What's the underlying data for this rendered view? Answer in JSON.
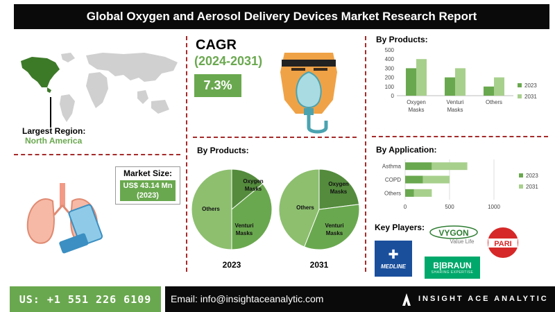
{
  "title": "Global Oxygen and Aerosol Delivery Devices Market Research Report",
  "region": {
    "label": "Largest Region:",
    "value": "North America"
  },
  "cagr": {
    "label": "CAGR",
    "period": "(2024-2031)",
    "value": "7.3%"
  },
  "market_size": {
    "label": "Market Size:",
    "value_line1": "US$ 43.14 Mn",
    "value_line2": "(2023)"
  },
  "products_heading": "By Products:",
  "application_heading": "By Application:",
  "pie_heading": "By Products:",
  "key_players_heading": "Key Players:",
  "logos": {
    "vygon": "VYGON",
    "vygon_tag": "Value Life",
    "pari": "PARI",
    "medline": "MEDLINE",
    "bbraun": "B|BRAUN",
    "bbraun_tag": "SHARING EXPERTISE"
  },
  "footer": {
    "phone": "US: +1 551 226 6109",
    "email": "Email: info@insightaceanalytic.com",
    "brand": "INSIGHT ACE ANALYTIC"
  },
  "colors": {
    "dark_green": "#6aa84f",
    "light_green": "#a8d08d",
    "mid_green": "#8dbf6f",
    "header": "#0a0a0a",
    "divider": "#a52a2a"
  },
  "icons": [
    "world-map-icon",
    "oxygen-mask-icon",
    "lungs-inhaler-icon",
    "insight-ace-logo-icon"
  ],
  "chart_data": [
    {
      "type": "bar",
      "title": "By Products:",
      "categories": [
        "Oxygen Masks",
        "Venturi Masks",
        "Others"
      ],
      "series": [
        {
          "name": "2023",
          "values": [
            300,
            200,
            100
          ],
          "color": "#6aa84f"
        },
        {
          "name": "2031",
          "values": [
            400,
            300,
            200
          ],
          "color": "#a8d08d"
        }
      ],
      "ylim": [
        0,
        500
      ],
      "yticks": [
        0,
        100,
        200,
        300,
        400,
        500
      ],
      "legend": "right"
    },
    {
      "type": "bar",
      "orientation": "horizontal",
      "title": "By Application:",
      "categories": [
        "Asthma",
        "COPD",
        "Others"
      ],
      "series": [
        {
          "name": "2023",
          "values": [
            300,
            200,
            100
          ],
          "color": "#6aa84f"
        },
        {
          "name": "2031",
          "values": [
            400,
            300,
            200
          ],
          "color": "#a8d08d"
        }
      ],
      "xlim": [
        0,
        1000
      ],
      "xticks": [
        0,
        500,
        1000
      ],
      "legend": "right"
    },
    {
      "type": "pie",
      "title": "2023",
      "slices": [
        {
          "label": "Oxygen Masks",
          "value": 14,
          "color": "#548b3d"
        },
        {
          "label": "Venturi Masks",
          "value": 36,
          "color": "#6aa84f"
        },
        {
          "label": "Others",
          "value": 50,
          "color": "#8dbf6f"
        }
      ]
    },
    {
      "type": "pie",
      "title": "2031",
      "slices": [
        {
          "label": "Oxygen Masks",
          "value": 23,
          "color": "#548b3d"
        },
        {
          "label": "Venturi Masks",
          "value": 33,
          "color": "#6aa84f"
        },
        {
          "label": "Others",
          "value": 44,
          "color": "#8dbf6f"
        }
      ]
    }
  ]
}
